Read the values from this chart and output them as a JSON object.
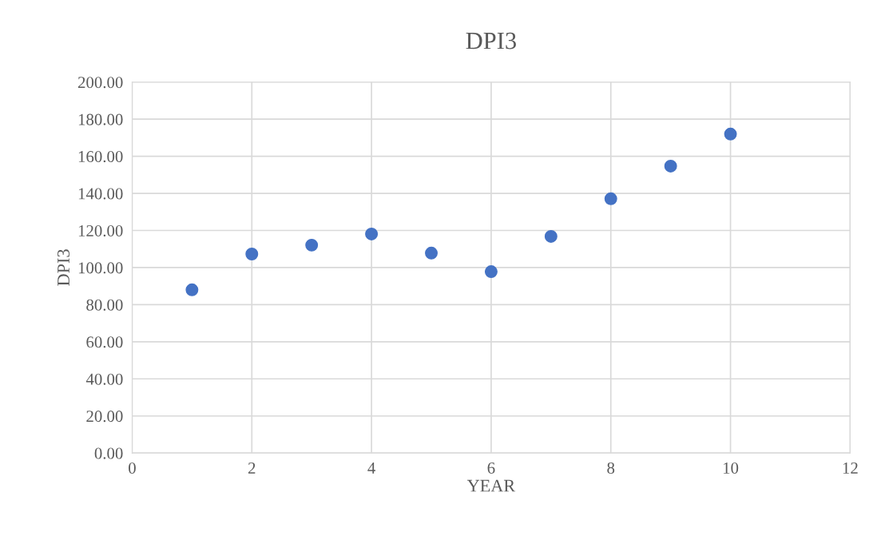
{
  "chart_data": {
    "type": "scatter",
    "title": "DPI3",
    "xlabel": "YEAR",
    "ylabel": "DPI3",
    "x": [
      1,
      2,
      3,
      4,
      5,
      6,
      7,
      8,
      9,
      10
    ],
    "series": [
      {
        "color": "#4472c4",
        "values": [
          88.0,
          107.3,
          112.1,
          118.1,
          107.8,
          97.8,
          116.8,
          137.1,
          154.7,
          172.0
        ]
      }
    ],
    "xlim": [
      0,
      12
    ],
    "xticks": [
      0,
      2,
      4,
      6,
      8,
      10,
      12
    ],
    "ylim": [
      0,
      200
    ],
    "yticks": [
      {
        "value": 0,
        "label": "0.00"
      },
      {
        "value": 20,
        "label": "20.00"
      },
      {
        "value": 40,
        "label": "40.00"
      },
      {
        "value": 60,
        "label": "60.00"
      },
      {
        "value": 80,
        "label": "80.00"
      },
      {
        "value": 100,
        "label": "100.00"
      },
      {
        "value": 120,
        "label": "120.00"
      },
      {
        "value": 140,
        "label": "140.00"
      },
      {
        "value": 160,
        "label": "160.00"
      },
      {
        "value": 180,
        "label": "180.00"
      },
      {
        "value": 200,
        "label": "200.00"
      }
    ],
    "grid": true,
    "marker": "circle"
  }
}
